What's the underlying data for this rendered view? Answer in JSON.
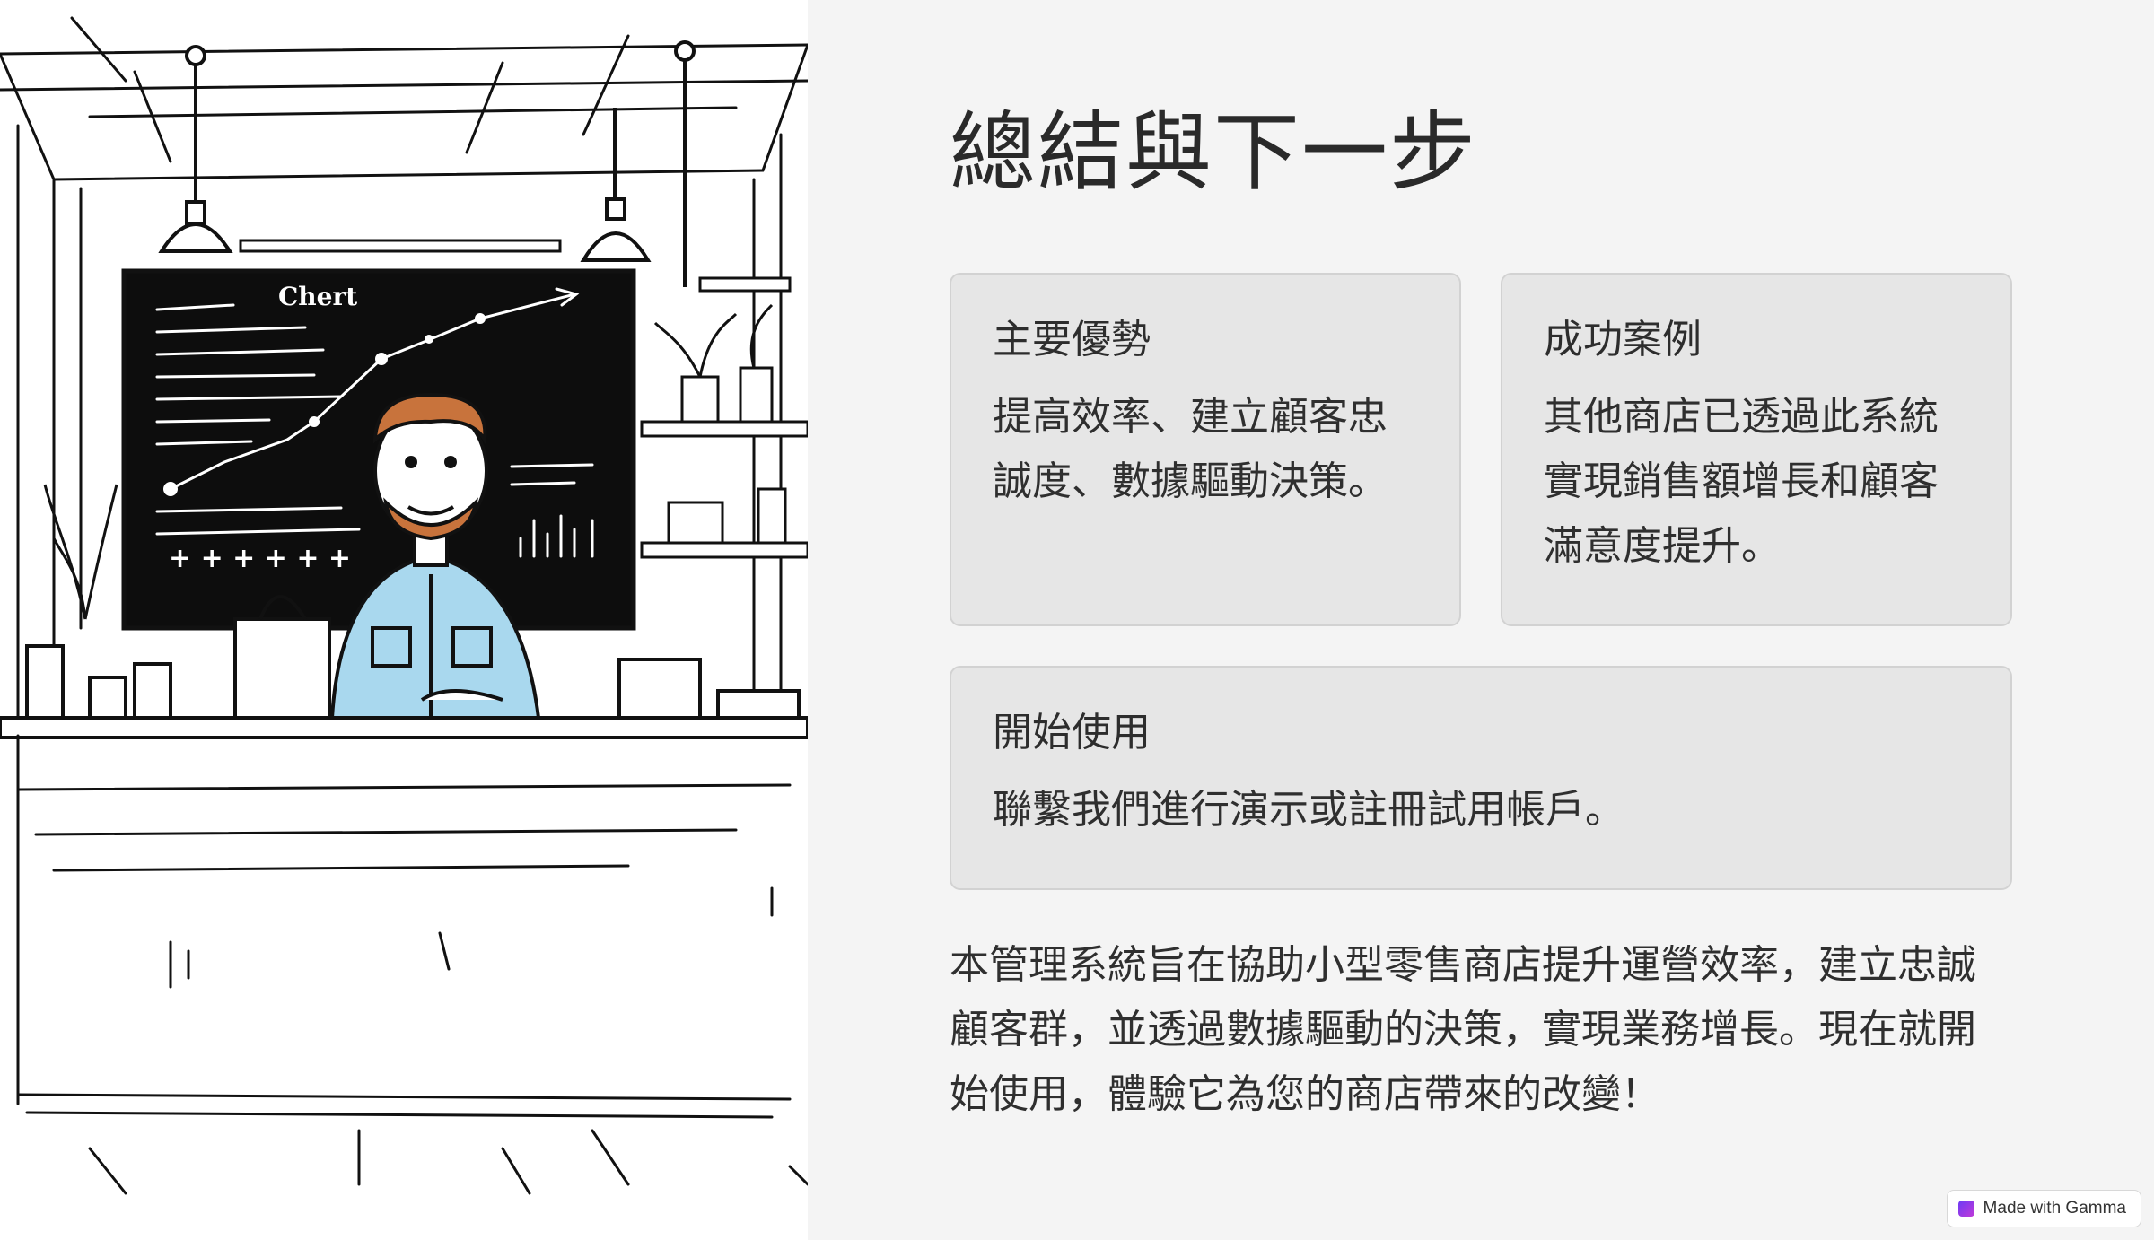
{
  "slide": {
    "title": "總結與下一步",
    "cards": [
      {
        "title": "主要優勢",
        "body": "提高效率、建立顧客忠誠度、數據驅動決策。"
      },
      {
        "title": "成功案例",
        "body": "其他商店已透過此系統實現銷售額增長和顧客滿意度提升。"
      },
      {
        "title": "開始使用",
        "body": "聯繫我們進行演示或註冊試用帳戶。"
      }
    ],
    "summary": "本管理系統旨在協助小型零售商店提升運營效率，建立忠誠顧客群，並透過數據驅動的決策，實現業務增長。現在就開始使用，體驗它為您的商店帶來的改變！"
  },
  "illustration": {
    "chalkboard_text": "Chert"
  },
  "badge": {
    "label": "Made with Gamma",
    "icon": "gamma-logo-icon",
    "accent": "#7c3aed"
  }
}
